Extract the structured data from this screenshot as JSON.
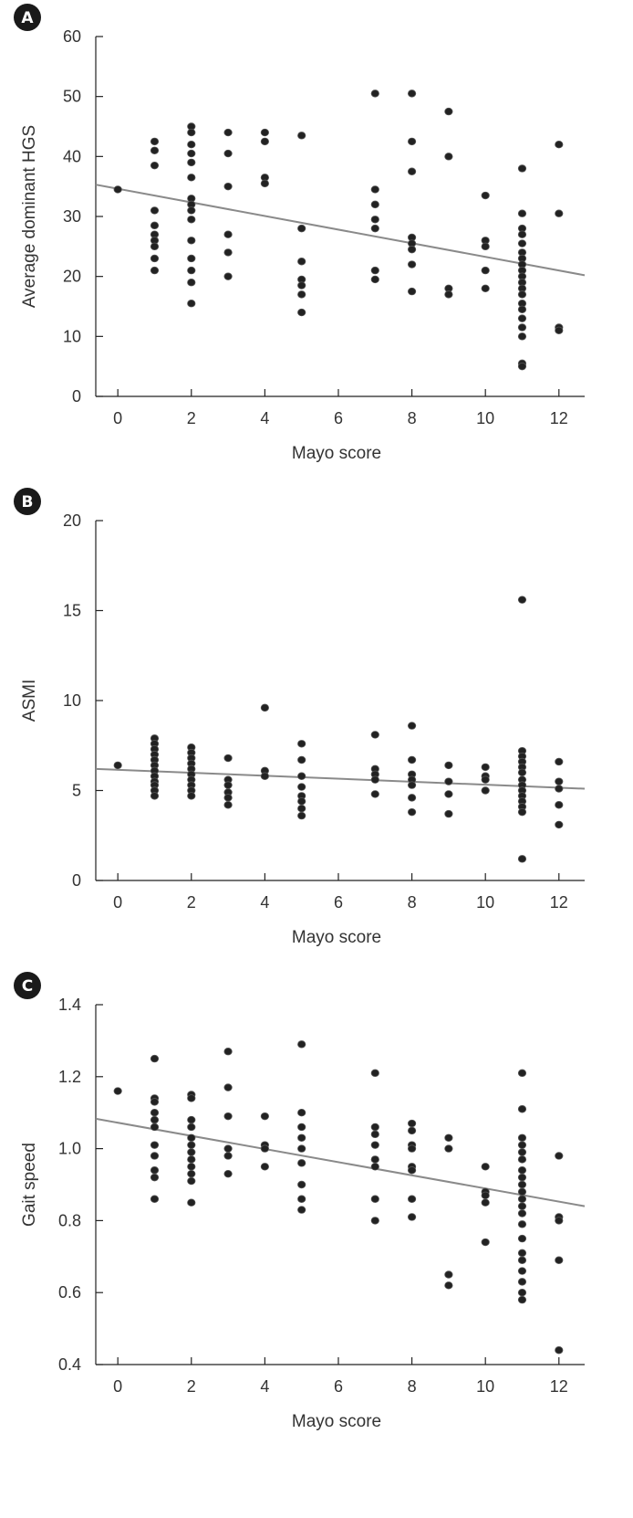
{
  "chart_data": [
    {
      "type": "scatter",
      "panel_label": "A",
      "xlabel": "Mayo score",
      "ylabel": "Average dominant HGS",
      "xlim": [
        -0.6,
        12.7
      ],
      "ylim": [
        0,
        60
      ],
      "xticks": [
        0,
        2,
        4,
        6,
        8,
        10,
        12
      ],
      "yticks": [
        0,
        10,
        20,
        30,
        40,
        50,
        60
      ],
      "trendline": {
        "x": [
          -0.6,
          12.7
        ],
        "y": [
          35.3,
          20.2
        ]
      },
      "points": [
        [
          0,
          34.5
        ],
        [
          1,
          42.5
        ],
        [
          1,
          41
        ],
        [
          1,
          38.5
        ],
        [
          1,
          31
        ],
        [
          1,
          28.5
        ],
        [
          1,
          27
        ],
        [
          1,
          26
        ],
        [
          1,
          25
        ],
        [
          1,
          23
        ],
        [
          1,
          21
        ],
        [
          2,
          45
        ],
        [
          2,
          44
        ],
        [
          2,
          42
        ],
        [
          2,
          40.5
        ],
        [
          2,
          39
        ],
        [
          2,
          36.5
        ],
        [
          2,
          33
        ],
        [
          2,
          32
        ],
        [
          2,
          31
        ],
        [
          2,
          29.5
        ],
        [
          2,
          26
        ],
        [
          2,
          23
        ],
        [
          2,
          21
        ],
        [
          2,
          19
        ],
        [
          2,
          15.5
        ],
        [
          3,
          44
        ],
        [
          3,
          40.5
        ],
        [
          3,
          35
        ],
        [
          3,
          27
        ],
        [
          3,
          24
        ],
        [
          3,
          20
        ],
        [
          4,
          44
        ],
        [
          4,
          42.5
        ],
        [
          4,
          36.5
        ],
        [
          4,
          35.5
        ],
        [
          5,
          43.5
        ],
        [
          5,
          28
        ],
        [
          5,
          22.5
        ],
        [
          5,
          19.5
        ],
        [
          5,
          18.5
        ],
        [
          5,
          17
        ],
        [
          5,
          14
        ],
        [
          7,
          50.5
        ],
        [
          7,
          34.5
        ],
        [
          7,
          32
        ],
        [
          7,
          29.5
        ],
        [
          7,
          28
        ],
        [
          7,
          21
        ],
        [
          7,
          19.5
        ],
        [
          8,
          50.5
        ],
        [
          8,
          42.5
        ],
        [
          8,
          37.5
        ],
        [
          8,
          26.5
        ],
        [
          8,
          25.5
        ],
        [
          8,
          24.5
        ],
        [
          8,
          22
        ],
        [
          8,
          17.5
        ],
        [
          9,
          47.5
        ],
        [
          9,
          40
        ],
        [
          9,
          18
        ],
        [
          9,
          17
        ],
        [
          10,
          33.5
        ],
        [
          10,
          26
        ],
        [
          10,
          25
        ],
        [
          10,
          21
        ],
        [
          10,
          18
        ],
        [
          11,
          38
        ],
        [
          11,
          30.5
        ],
        [
          11,
          28
        ],
        [
          11,
          27
        ],
        [
          11,
          25.5
        ],
        [
          11,
          24
        ],
        [
          11,
          23
        ],
        [
          11,
          22
        ],
        [
          11,
          21
        ],
        [
          11,
          20
        ],
        [
          11,
          19
        ],
        [
          11,
          18
        ],
        [
          11,
          17
        ],
        [
          11,
          15.5
        ],
        [
          11,
          14.5
        ],
        [
          11,
          13
        ],
        [
          11,
          11.5
        ],
        [
          11,
          10
        ],
        [
          11,
          5.5
        ],
        [
          11,
          5
        ],
        [
          12,
          42
        ],
        [
          12,
          30.5
        ],
        [
          12,
          11.5
        ],
        [
          12,
          11
        ]
      ]
    },
    {
      "type": "scatter",
      "panel_label": "B",
      "xlabel": "Mayo score",
      "ylabel": "ASMI",
      "xlim": [
        -0.6,
        12.7
      ],
      "ylim": [
        0,
        20
      ],
      "xticks": [
        0,
        2,
        4,
        6,
        8,
        10,
        12
      ],
      "yticks": [
        0,
        5,
        10,
        15,
        20
      ],
      "trendline": {
        "x": [
          -0.6,
          12.7
        ],
        "y": [
          6.2,
          5.1
        ]
      },
      "points": [
        [
          0,
          6.4
        ],
        [
          1,
          7.9
        ],
        [
          1,
          7.6
        ],
        [
          1,
          7.3
        ],
        [
          1,
          7
        ],
        [
          1,
          6.7
        ],
        [
          1,
          6.4
        ],
        [
          1,
          6.1
        ],
        [
          1,
          5.8
        ],
        [
          1,
          5.5
        ],
        [
          1,
          5.3
        ],
        [
          1,
          5
        ],
        [
          1,
          4.7
        ],
        [
          2,
          7.4
        ],
        [
          2,
          7.1
        ],
        [
          2,
          6.8
        ],
        [
          2,
          6.5
        ],
        [
          2,
          6.2
        ],
        [
          2,
          5.9
        ],
        [
          2,
          5.6
        ],
        [
          2,
          5.3
        ],
        [
          2,
          5
        ],
        [
          2,
          4.7
        ],
        [
          3,
          6.8
        ],
        [
          3,
          5.6
        ],
        [
          3,
          5.3
        ],
        [
          3,
          4.9
        ],
        [
          3,
          4.6
        ],
        [
          3,
          4.2
        ],
        [
          4,
          9.6
        ],
        [
          4,
          6.1
        ],
        [
          4,
          5.8
        ],
        [
          5,
          7.6
        ],
        [
          5,
          6.7
        ],
        [
          5,
          5.8
        ],
        [
          5,
          5.2
        ],
        [
          5,
          4.7
        ],
        [
          5,
          4.4
        ],
        [
          5,
          4
        ],
        [
          5,
          3.6
        ],
        [
          7,
          8.1
        ],
        [
          7,
          6.2
        ],
        [
          7,
          5.9
        ],
        [
          7,
          5.6
        ],
        [
          7,
          4.8
        ],
        [
          8,
          8.6
        ],
        [
          8,
          6.7
        ],
        [
          8,
          5.9
        ],
        [
          8,
          5.6
        ],
        [
          8,
          5.3
        ],
        [
          8,
          4.6
        ],
        [
          8,
          3.8
        ],
        [
          9,
          6.4
        ],
        [
          9,
          5.5
        ],
        [
          9,
          4.8
        ],
        [
          9,
          3.7
        ],
        [
          10,
          6.3
        ],
        [
          10,
          5.8
        ],
        [
          10,
          5.6
        ],
        [
          10,
          5
        ],
        [
          11,
          15.6
        ],
        [
          11,
          7.2
        ],
        [
          11,
          6.9
        ],
        [
          11,
          6.6
        ],
        [
          11,
          6.3
        ],
        [
          11,
          6
        ],
        [
          11,
          5.6
        ],
        [
          11,
          5.3
        ],
        [
          11,
          5
        ],
        [
          11,
          4.7
        ],
        [
          11,
          4.4
        ],
        [
          11,
          4.1
        ],
        [
          11,
          3.8
        ],
        [
          11,
          1.2
        ],
        [
          12,
          6.6
        ],
        [
          12,
          5.5
        ],
        [
          12,
          5.1
        ],
        [
          12,
          4.2
        ],
        [
          12,
          3.1
        ]
      ]
    },
    {
      "type": "scatter",
      "panel_label": "C",
      "xlabel": "Mayo score",
      "ylabel": "Gait speed",
      "xlim": [
        -0.6,
        12.7
      ],
      "ylim": [
        0.4,
        1.4
      ],
      "xticks": [
        0,
        2,
        4,
        6,
        8,
        10,
        12
      ],
      "yticks": [
        0.4,
        0.6,
        0.8,
        1.0,
        1.2,
        1.4
      ],
      "ytick_labels": [
        "0.4",
        "0.6",
        "0.8",
        "1.0",
        "1.2",
        "1.4"
      ],
      "trendline": {
        "x": [
          -0.6,
          12.7
        ],
        "y": [
          1.083,
          0.84
        ]
      },
      "points": [
        [
          0,
          1.16
        ],
        [
          1,
          1.25
        ],
        [
          1,
          1.14
        ],
        [
          1,
          1.13
        ],
        [
          1,
          1.1
        ],
        [
          1,
          1.08
        ],
        [
          1,
          1.06
        ],
        [
          1,
          1.01
        ],
        [
          1,
          0.98
        ],
        [
          1,
          0.94
        ],
        [
          1,
          0.92
        ],
        [
          1,
          0.86
        ],
        [
          2,
          1.15
        ],
        [
          2,
          1.14
        ],
        [
          2,
          1.08
        ],
        [
          2,
          1.06
        ],
        [
          2,
          1.03
        ],
        [
          2,
          1.01
        ],
        [
          2,
          0.99
        ],
        [
          2,
          0.97
        ],
        [
          2,
          0.95
        ],
        [
          2,
          0.93
        ],
        [
          2,
          0.91
        ],
        [
          2,
          0.85
        ],
        [
          3,
          1.27
        ],
        [
          3,
          1.17
        ],
        [
          3,
          1.09
        ],
        [
          3,
          1.0
        ],
        [
          3,
          0.98
        ],
        [
          3,
          0.93
        ],
        [
          4,
          1.09
        ],
        [
          4,
          1.01
        ],
        [
          4,
          1.0
        ],
        [
          4,
          0.95
        ],
        [
          5,
          1.29
        ],
        [
          5,
          1.1
        ],
        [
          5,
          1.06
        ],
        [
          5,
          1.03
        ],
        [
          5,
          1.0
        ],
        [
          5,
          0.96
        ],
        [
          5,
          0.9
        ],
        [
          5,
          0.86
        ],
        [
          5,
          0.83
        ],
        [
          7,
          1.21
        ],
        [
          7,
          1.06
        ],
        [
          7,
          1.04
        ],
        [
          7,
          1.01
        ],
        [
          7,
          0.97
        ],
        [
          7,
          0.95
        ],
        [
          7,
          0.86
        ],
        [
          7,
          0.8
        ],
        [
          8,
          1.07
        ],
        [
          8,
          1.05
        ],
        [
          8,
          1.01
        ],
        [
          8,
          1.0
        ],
        [
          8,
          0.95
        ],
        [
          8,
          0.94
        ],
        [
          8,
          0.86
        ],
        [
          8,
          0.81
        ],
        [
          9,
          1.03
        ],
        [
          9,
          1.0
        ],
        [
          9,
          0.65
        ],
        [
          9,
          0.62
        ],
        [
          10,
          0.95
        ],
        [
          10,
          0.88
        ],
        [
          10,
          0.87
        ],
        [
          10,
          0.85
        ],
        [
          10,
          0.74
        ],
        [
          11,
          1.21
        ],
        [
          11,
          1.11
        ],
        [
          11,
          1.03
        ],
        [
          11,
          1.01
        ],
        [
          11,
          0.99
        ],
        [
          11,
          0.97
        ],
        [
          11,
          0.94
        ],
        [
          11,
          0.92
        ],
        [
          11,
          0.9
        ],
        [
          11,
          0.88
        ],
        [
          11,
          0.86
        ],
        [
          11,
          0.84
        ],
        [
          11,
          0.82
        ],
        [
          11,
          0.79
        ],
        [
          11,
          0.75
        ],
        [
          11,
          0.71
        ],
        [
          11,
          0.69
        ],
        [
          11,
          0.66
        ],
        [
          11,
          0.63
        ],
        [
          11,
          0.6
        ],
        [
          11,
          0.58
        ],
        [
          12,
          0.98
        ],
        [
          12,
          0.81
        ],
        [
          12,
          0.8
        ],
        [
          12,
          0.69
        ],
        [
          12,
          0.44
        ]
      ]
    }
  ]
}
